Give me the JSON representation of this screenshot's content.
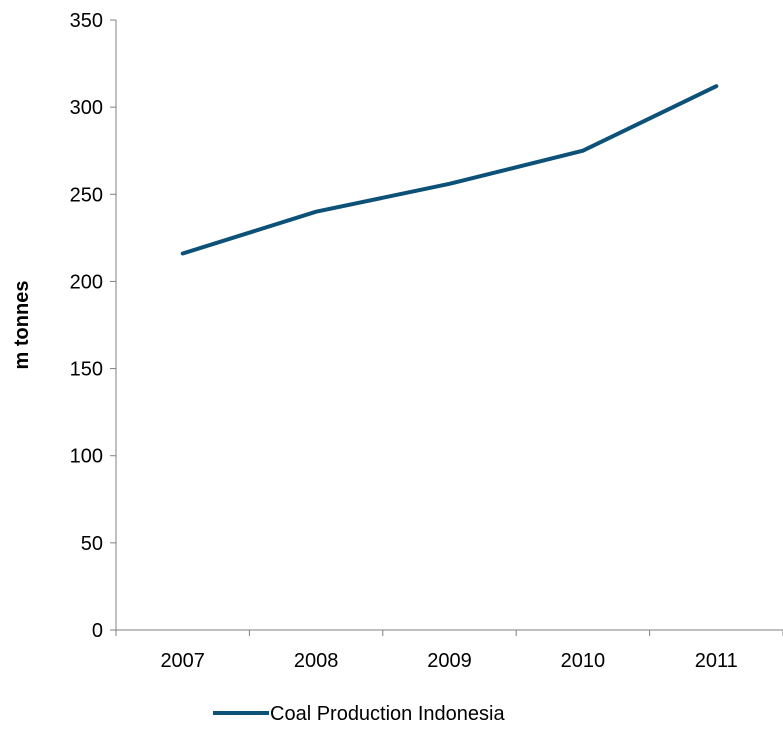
{
  "chart_data": {
    "type": "line",
    "title": "",
    "xlabel": "",
    "ylabel": "m tonnes",
    "categories": [
      "2007",
      "2008",
      "2009",
      "2010",
      "2011"
    ],
    "ylim": [
      0,
      350
    ],
    "yticks": [
      0,
      50,
      100,
      150,
      200,
      250,
      300,
      350
    ],
    "series": [
      {
        "name": "Coal Production Indonesia",
        "values": [
          216,
          240,
          256,
          275,
          312
        ],
        "color": "#0b5178"
      }
    ],
    "grid": false,
    "legend_position": "bottom"
  }
}
